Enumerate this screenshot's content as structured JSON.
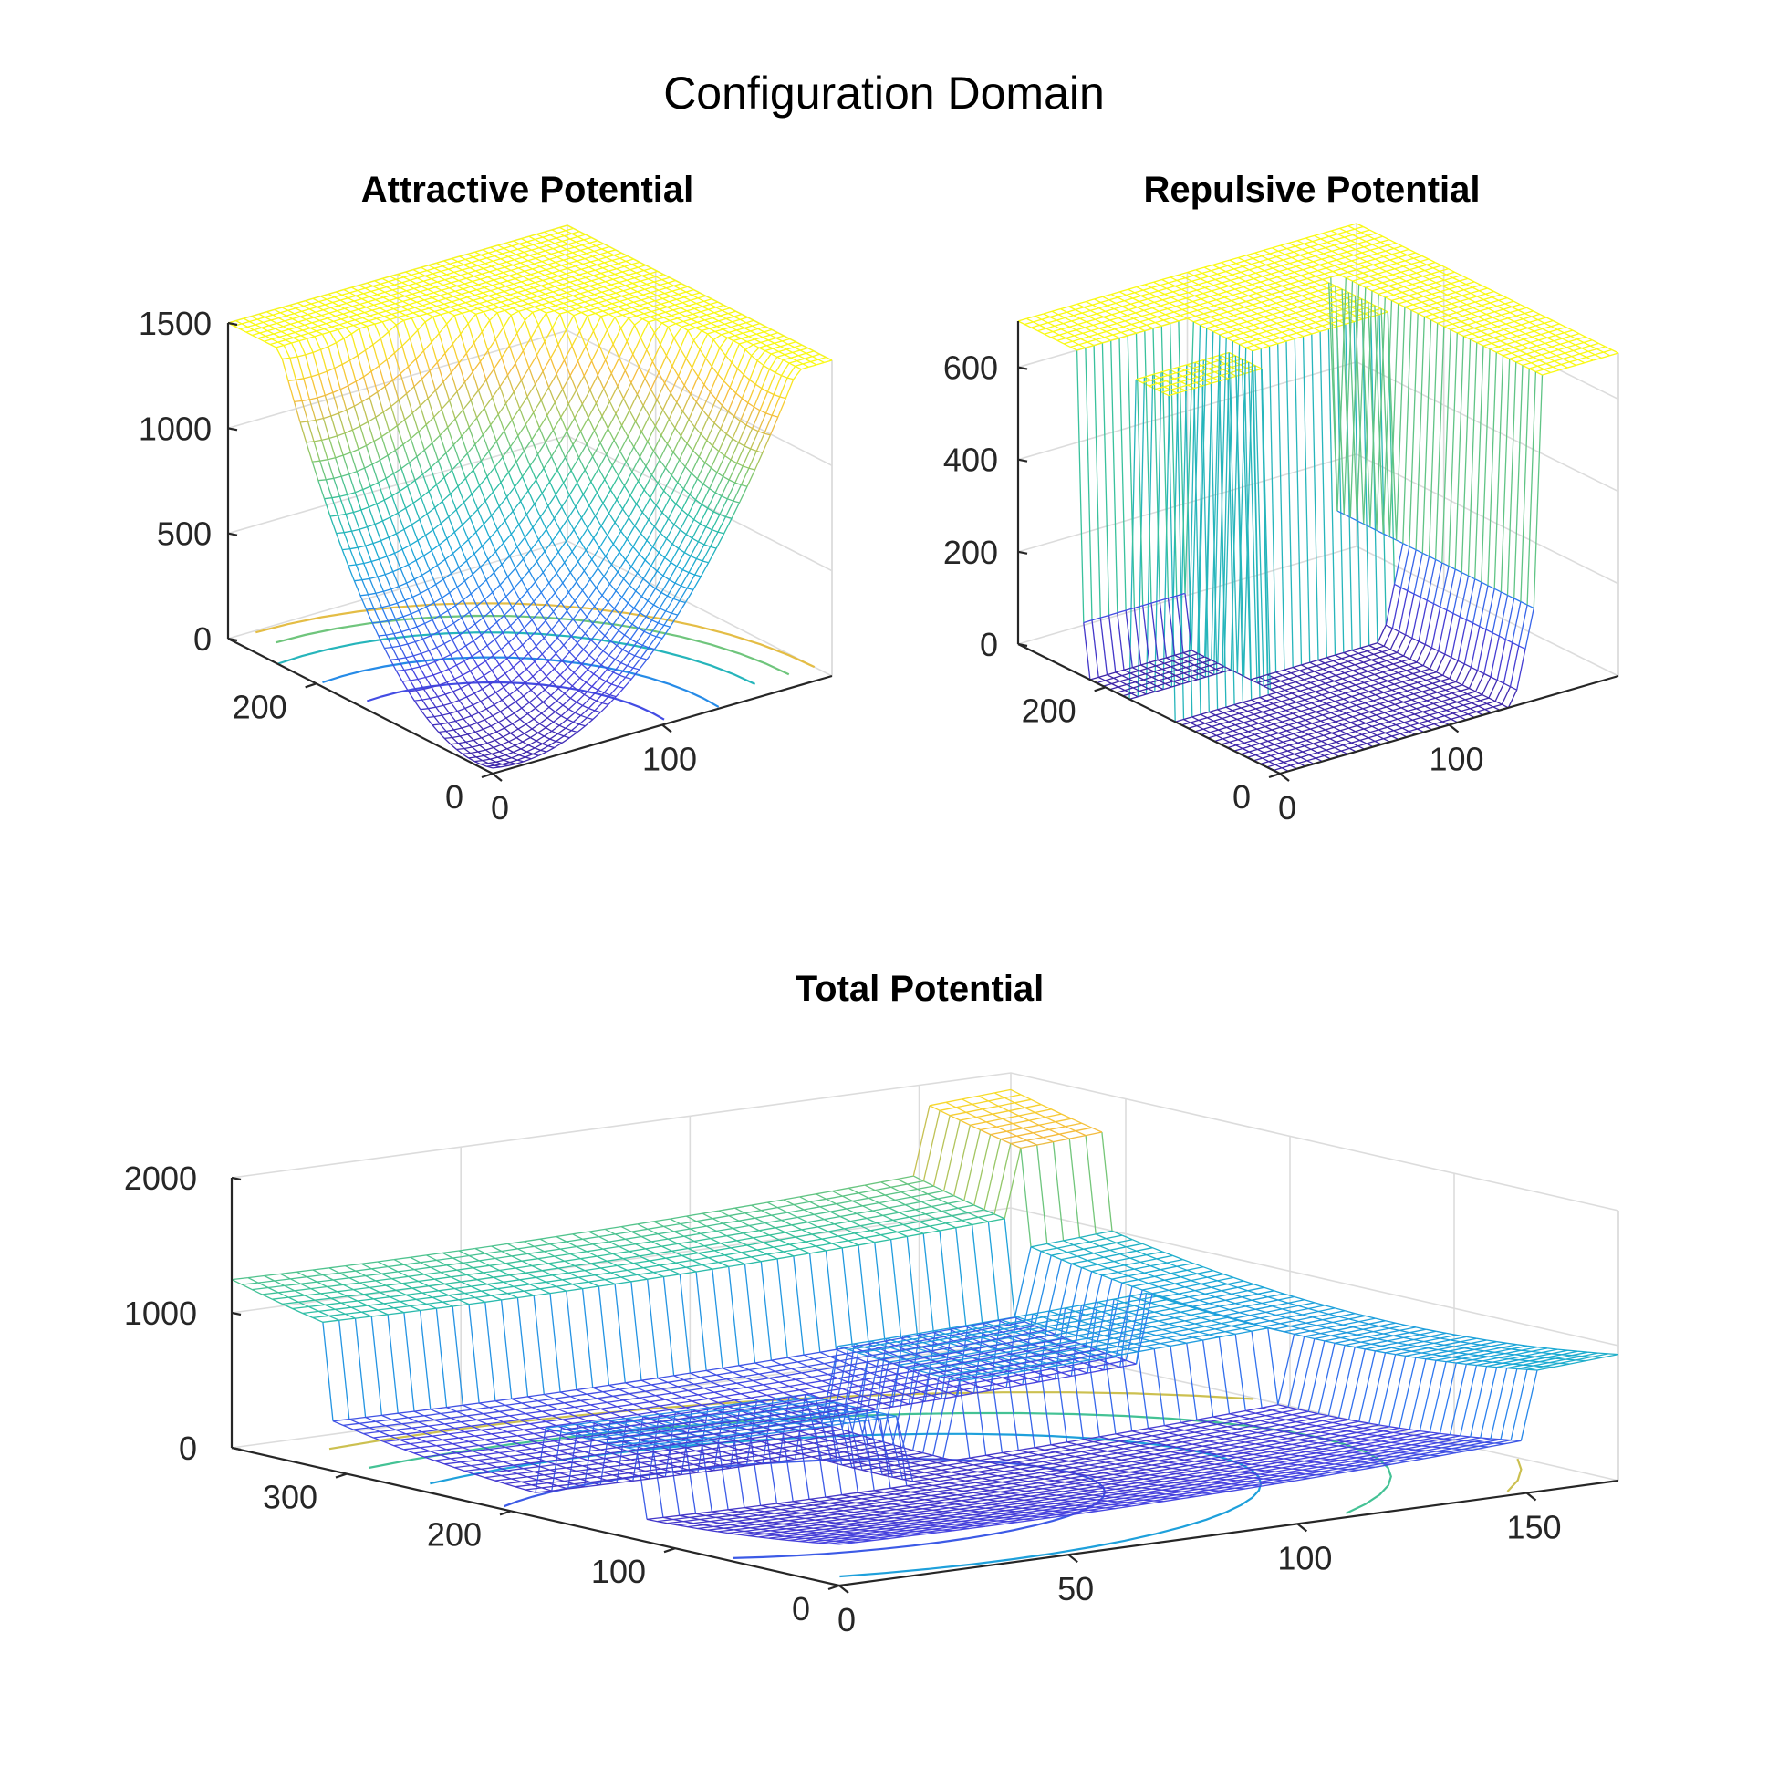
{
  "figure": {
    "title": "Configuration Domain",
    "colormap": [
      "#3e26a8",
      "#4743e0",
      "#2c7cf0",
      "#1ba9d6",
      "#31c0a0",
      "#8ec86a",
      "#f5bb3e",
      "#f9f915"
    ]
  },
  "chart_data": [
    {
      "id": "attractive",
      "type": "surface",
      "title": "Attractive Potential",
      "x_ticks": [
        "0",
        "100"
      ],
      "y_ticks": [
        "0",
        "200"
      ],
      "z_ticks": [
        "0",
        "500",
        "1000",
        "1500"
      ],
      "xlim": [
        0,
        200
      ],
      "ylim": [
        0,
        300
      ],
      "zlim": [
        0,
        1500
      ],
      "grid": true,
      "contours_on_floor": true
    },
    {
      "id": "repulsive",
      "type": "surface",
      "title": "Repulsive Potential",
      "x_ticks": [
        "0",
        "100"
      ],
      "y_ticks": [
        "0",
        "200"
      ],
      "z_ticks": [
        "0",
        "200",
        "400",
        "600"
      ],
      "xlim": [
        0,
        200
      ],
      "ylim": [
        0,
        300
      ],
      "zlim": [
        0,
        700
      ],
      "grid": true,
      "contours_on_floor": true
    },
    {
      "id": "total",
      "type": "surface",
      "title": "Total Potential",
      "x_ticks": [
        "0",
        "50",
        "100",
        "150"
      ],
      "y_ticks": [
        "0",
        "100",
        "200",
        "300"
      ],
      "z_ticks": [
        "0",
        "1000",
        "2000"
      ],
      "xlim": [
        0,
        170
      ],
      "ylim": [
        0,
        370
      ],
      "zlim": [
        0,
        2000
      ],
      "grid": true,
      "contours_on_floor": true
    }
  ]
}
